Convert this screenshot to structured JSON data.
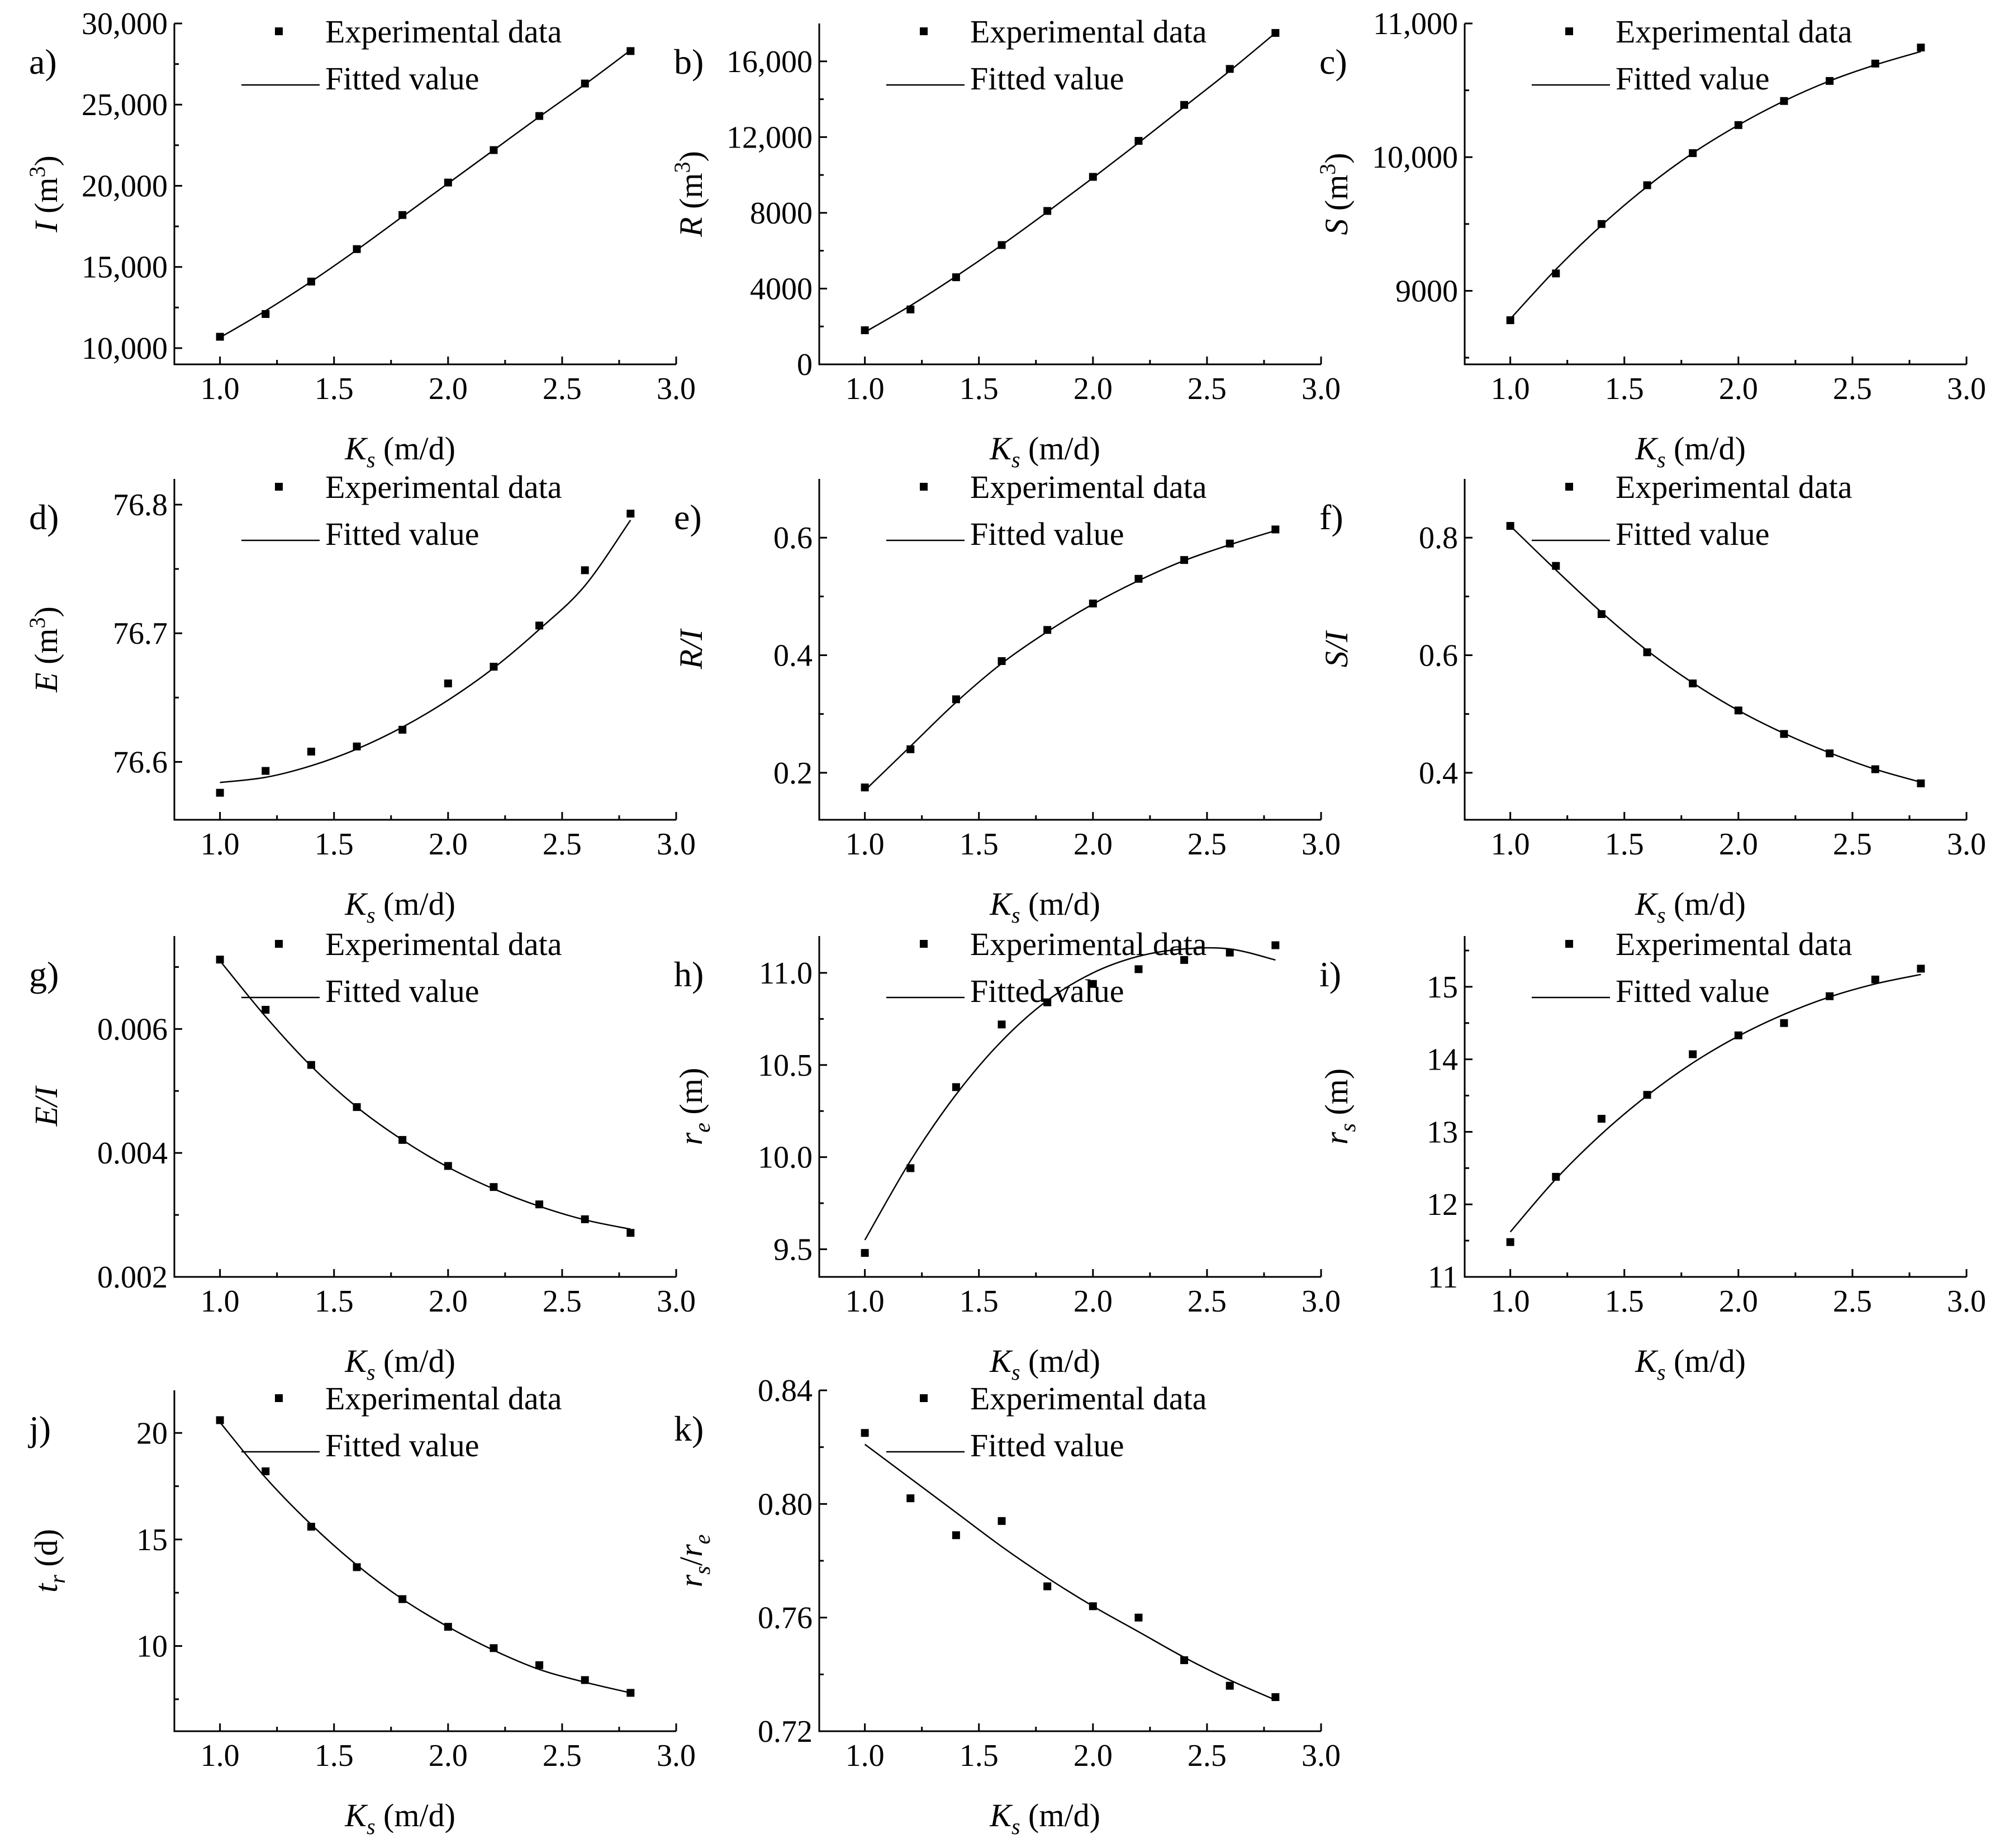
{
  "chart_data": [
    {
      "panel_label": "a)",
      "type": "scatter",
      "xlabel": {
        "main": "K",
        "sub": "s",
        "unit": " (m/d)"
      },
      "ylabel": {
        "main": "I",
        "sub": "",
        "unit": " (m",
        "sup": "3",
        "close": ")"
      },
      "xlim": [
        0.8,
        3.0
      ],
      "ylim": [
        9000,
        30000
      ],
      "xticks": [
        "1.0",
        "1.5",
        "2.0",
        "2.5",
        "3.0"
      ],
      "yticks": [
        "10,000",
        "15,000",
        "20,000",
        "25,000",
        "30,000"
      ],
      "legend": {
        "data_label": "Experimental data",
        "fit_label": "Fitted value"
      },
      "x": [
        1.0,
        1.2,
        1.4,
        1.6,
        1.8,
        2.0,
        2.2,
        2.4,
        2.6,
        2.8
      ],
      "y": [
        10700,
        12100,
        14100,
        16100,
        18200,
        20200,
        22200,
        24300,
        26300,
        28300
      ],
      "fit": [
        10650,
        12300,
        14100,
        16050,
        18100,
        20150,
        22200,
        24250,
        26250,
        28350
      ]
    },
    {
      "panel_label": "b)",
      "type": "scatter",
      "xlabel": {
        "main": "K",
        "sub": "s",
        "unit": " (m/d)"
      },
      "ylabel": {
        "main": "R",
        "sub": "",
        "unit": " (m",
        "sup": "3",
        "close": ")"
      },
      "xlim": [
        0.8,
        3.0
      ],
      "ylim": [
        0,
        18000
      ],
      "xticks": [
        "1.0",
        "1.5",
        "2.0",
        "2.5",
        "3.0"
      ],
      "yticks": [
        "0",
        "4000",
        "8000",
        "12,000",
        "16,000"
      ],
      "legend": {
        "data_label": "Experimental data",
        "fit_label": "Fitted value"
      },
      "x": [
        1.0,
        1.2,
        1.4,
        1.6,
        1.8,
        2.0,
        2.2,
        2.4,
        2.6,
        2.8
      ],
      "y": [
        1800,
        2900,
        4600,
        6300,
        8100,
        9900,
        11800,
        13700,
        15600,
        17500
      ],
      "fit": [
        1700,
        3100,
        4650,
        6300,
        8050,
        9850,
        11700,
        13600,
        15500,
        17500
      ]
    },
    {
      "panel_label": "c)",
      "type": "scatter",
      "xlabel": {
        "main": "K",
        "sub": "s",
        "unit": " (m/d)"
      },
      "ylabel": {
        "main": "S",
        "sub": "",
        "unit": " (m",
        "sup": "3",
        "close": ")"
      },
      "xlim": [
        0.8,
        3.0
      ],
      "ylim": [
        8450,
        11000
      ],
      "xticks": [
        "1.0",
        "1.5",
        "2.0",
        "2.5",
        "3.0"
      ],
      "yticks": [
        "9000",
        "10,000",
        "11,000"
      ],
      "ytick_values": [
        9000,
        10000,
        11000
      ],
      "legend": {
        "data_label": "Experimental data",
        "fit_label": "Fitted value"
      },
      "x": [
        1.0,
        1.2,
        1.4,
        1.6,
        1.8,
        2.0,
        2.2,
        2.4,
        2.6,
        2.8
      ],
      "y": [
        8780,
        9130,
        9500,
        9790,
        10030,
        10240,
        10420,
        10570,
        10700,
        10820
      ],
      "fit": [
        8790,
        9160,
        9490,
        9780,
        10030,
        10240,
        10420,
        10570,
        10690,
        10790
      ]
    },
    {
      "panel_label": "d)",
      "type": "scatter",
      "xlabel": {
        "main": "K",
        "sub": "s",
        "unit": " (m/d)"
      },
      "ylabel": {
        "main": "E",
        "sub": "",
        "unit": " (m",
        "sup": "3",
        "close": ")"
      },
      "xlim": [
        0.8,
        3.0
      ],
      "ylim": [
        76.555,
        76.82
      ],
      "xticks": [
        "1.0",
        "1.5",
        "2.0",
        "2.5",
        "3.0"
      ],
      "yticks": [
        "76.6",
        "76.7",
        "76.8"
      ],
      "ytick_values": [
        76.6,
        76.7,
        76.8
      ],
      "legend": {
        "data_label": "Experimental data",
        "fit_label": "Fitted value"
      },
      "x": [
        1.0,
        1.2,
        1.4,
        1.6,
        1.8,
        2.0,
        2.2,
        2.4,
        2.6,
        2.8
      ],
      "y": [
        76.576,
        76.593,
        76.608,
        76.612,
        76.625,
        76.661,
        76.674,
        76.706,
        76.749,
        76.793
      ],
      "fit": [
        76.584,
        76.588,
        76.597,
        76.61,
        76.627,
        76.648,
        76.673,
        76.703,
        76.737,
        76.788
      ]
    },
    {
      "panel_label": "e)",
      "type": "scatter",
      "xlabel": {
        "main": "K",
        "sub": "s",
        "unit": " (m/d)"
      },
      "ylabel": {
        "main": "R/I",
        "sub": "",
        "unit": "",
        "sup": "",
        "close": ""
      },
      "xlim": [
        0.8,
        3.0
      ],
      "ylim": [
        0.12,
        0.7
      ],
      "xticks": [
        "1.0",
        "1.5",
        "2.0",
        "2.5",
        "3.0"
      ],
      "yticks": [
        "0.2",
        "0.4",
        "0.6"
      ],
      "ytick_values": [
        0.2,
        0.4,
        0.6
      ],
      "legend": {
        "data_label": "Experimental data",
        "fit_label": "Fitted value"
      },
      "x": [
        1.0,
        1.2,
        1.4,
        1.6,
        1.8,
        2.0,
        2.2,
        2.4,
        2.6,
        2.8
      ],
      "y": [
        0.175,
        0.24,
        0.325,
        0.39,
        0.443,
        0.488,
        0.53,
        0.562,
        0.59,
        0.614
      ],
      "fit": [
        0.17,
        0.245,
        0.32,
        0.386,
        0.44,
        0.487,
        0.527,
        0.561,
        0.588,
        0.612
      ]
    },
    {
      "panel_label": "f)",
      "type": "scatter",
      "xlabel": {
        "main": "K",
        "sub": "s",
        "unit": " (m/d)"
      },
      "ylabel": {
        "main": "S/I",
        "sub": "",
        "unit": "",
        "sup": "",
        "close": ""
      },
      "xlim": [
        0.8,
        3.0
      ],
      "ylim": [
        0.32,
        0.9
      ],
      "xticks": [
        "1.0",
        "1.5",
        "2.0",
        "2.5",
        "3.0"
      ],
      "yticks": [
        "0.4",
        "0.6",
        "0.8"
      ],
      "ytick_values": [
        0.4,
        0.6,
        0.8
      ],
      "legend": {
        "data_label": "Experimental data",
        "fit_label": "Fitted value"
      },
      "x": [
        1.0,
        1.2,
        1.4,
        1.6,
        1.8,
        2.0,
        2.2,
        2.4,
        2.6,
        2.8
      ],
      "y": [
        0.82,
        0.752,
        0.67,
        0.605,
        0.552,
        0.506,
        0.466,
        0.433,
        0.406,
        0.382
      ],
      "fit": [
        0.82,
        0.745,
        0.673,
        0.608,
        0.553,
        0.506,
        0.467,
        0.434,
        0.406,
        0.384
      ]
    },
    {
      "panel_label": "g)",
      "type": "scatter",
      "xlabel": {
        "main": "K",
        "sub": "s",
        "unit": " (m/d)"
      },
      "ylabel": {
        "main": "E/I",
        "sub": "",
        "unit": "",
        "sup": "",
        "close": ""
      },
      "xlim": [
        0.8,
        3.0
      ],
      "ylim": [
        0.002,
        0.0075
      ],
      "xticks": [
        "1.0",
        "1.5",
        "2.0",
        "2.5",
        "3.0"
      ],
      "yticks": [
        "0.002",
        "0.004",
        "0.006"
      ],
      "ytick_values": [
        0.002,
        0.004,
        0.006
      ],
      "legend": {
        "data_label": "Experimental data",
        "fit_label": "Fitted value"
      },
      "x": [
        1.0,
        1.2,
        1.4,
        1.6,
        1.8,
        2.0,
        2.2,
        2.4,
        2.6,
        2.8
      ],
      "y": [
        0.00712,
        0.00631,
        0.00542,
        0.00474,
        0.00421,
        0.00379,
        0.00345,
        0.00317,
        0.00293,
        0.00271
      ],
      "fit": [
        0.0071,
        0.0062,
        0.0054,
        0.00474,
        0.00421,
        0.00377,
        0.00342,
        0.00314,
        0.00292,
        0.00277
      ]
    },
    {
      "panel_label": "h)",
      "type": "scatter",
      "xlabel": {
        "main": "K",
        "sub": "s",
        "unit": " (m/d)"
      },
      "ylabel": {
        "main": "r",
        "sub": "e",
        "unit": " (m)",
        "sup": "",
        "close": ""
      },
      "xlim": [
        0.8,
        3.0
      ],
      "ylim": [
        9.35,
        11.2
      ],
      "xticks": [
        "1.0",
        "1.5",
        "2.0",
        "2.5",
        "3.0"
      ],
      "yticks": [
        "9.5",
        "10.0",
        "10.5",
        "11.0"
      ],
      "ytick_values": [
        9.5,
        10.0,
        10.5,
        11.0
      ],
      "legend": {
        "data_label": "Experimental data",
        "fit_label": "Fitted value"
      },
      "x": [
        1.0,
        1.2,
        1.4,
        1.6,
        1.8,
        2.0,
        2.2,
        2.4,
        2.6,
        2.8
      ],
      "y": [
        9.48,
        9.94,
        10.38,
        10.72,
        10.84,
        10.94,
        11.02,
        11.07,
        11.11,
        11.15
      ],
      "fit": [
        9.55,
        9.98,
        10.34,
        10.63,
        10.85,
        11.0,
        11.09,
        11.13,
        11.13,
        11.07
      ]
    },
    {
      "panel_label": "i)",
      "type": "scatter",
      "xlabel": {
        "main": "K",
        "sub": "s",
        "unit": " (m/d)"
      },
      "ylabel": {
        "main": "r",
        "sub": "s",
        "unit": " (m)",
        "sup": "",
        "close": ""
      },
      "xlim": [
        0.8,
        3.0
      ],
      "ylim": [
        11,
        15.7
      ],
      "xticks": [
        "1.0",
        "1.5",
        "2.0",
        "2.5",
        "3.0"
      ],
      "yticks": [
        "11",
        "12",
        "13",
        "14",
        "15"
      ],
      "ytick_values": [
        11,
        12,
        13,
        14,
        15
      ],
      "legend": {
        "data_label": "Experimental data",
        "fit_label": "Fitted value"
      },
      "x": [
        1.0,
        1.2,
        1.4,
        1.6,
        1.8,
        2.0,
        2.2,
        2.4,
        2.6,
        2.8
      ],
      "y": [
        11.48,
        12.38,
        13.18,
        13.51,
        14.07,
        14.33,
        14.5,
        14.87,
        15.1,
        15.25
      ],
      "fit": [
        11.62,
        12.35,
        12.97,
        13.5,
        13.95,
        14.32,
        14.62,
        14.86,
        15.04,
        15.17
      ]
    },
    {
      "panel_label": "j)",
      "type": "scatter",
      "xlabel": {
        "main": "K",
        "sub": "s",
        "unit": " (m/d)"
      },
      "ylabel": {
        "main": "t",
        "sub": "r",
        "unit": " (d)",
        "sup": "",
        "close": ""
      },
      "xlim": [
        0.8,
        3.0
      ],
      "ylim": [
        6,
        22
      ],
      "xticks": [
        "1.0",
        "1.5",
        "2.0",
        "2.5",
        "3.0"
      ],
      "yticks": [
        "10",
        "15",
        "20"
      ],
      "ytick_values": [
        10,
        15,
        20
      ],
      "legend": {
        "data_label": "Experimental data",
        "fit_label": "Fitted value"
      },
      "x": [
        1.0,
        1.2,
        1.4,
        1.6,
        1.8,
        2.0,
        2.2,
        2.4,
        2.6,
        2.8
      ],
      "y": [
        20.6,
        18.2,
        15.6,
        13.7,
        12.2,
        10.9,
        9.9,
        9.1,
        8.4,
        7.8
      ],
      "fit": [
        20.5,
        17.9,
        15.7,
        13.8,
        12.2,
        10.9,
        9.8,
        8.9,
        8.3,
        7.8
      ]
    },
    {
      "panel_label": "k)",
      "type": "scatter",
      "xlabel": {
        "main": "K",
        "sub": "s",
        "unit": " (m/d)"
      },
      "ylabel": {
        "main": "r",
        "sub": "s",
        "unit": "/",
        "sup": "",
        "close": "",
        "main2": "r",
        "sub2": "e"
      },
      "xlim": [
        0.8,
        3.0
      ],
      "ylim": [
        0.72,
        0.84
      ],
      "xticks": [
        "1.0",
        "1.5",
        "2.0",
        "2.5",
        "3.0"
      ],
      "yticks": [
        "0.72",
        "0.76",
        "0.80",
        "0.84"
      ],
      "ytick_values": [
        0.72,
        0.76,
        0.8,
        0.84
      ],
      "legend": {
        "data_label": "Experimental data",
        "fit_label": "Fitted value"
      },
      "x": [
        1.0,
        1.2,
        1.4,
        1.6,
        1.8,
        2.0,
        2.2,
        2.4,
        2.6,
        2.8
      ],
      "y": [
        0.825,
        0.802,
        0.789,
        0.794,
        0.771,
        0.764,
        0.76,
        0.745,
        0.736,
        0.732
      ],
      "fit": [
        0.821,
        0.809,
        0.797,
        0.785,
        0.774,
        0.764,
        0.755,
        0.746,
        0.738,
        0.731
      ]
    }
  ]
}
